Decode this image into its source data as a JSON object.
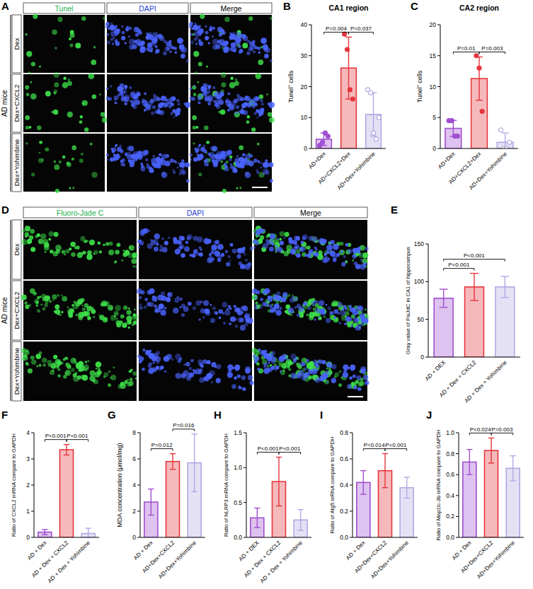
{
  "chart_data": [
    {
      "type": "bar",
      "panel": "B",
      "title": "CA1 region",
      "ylabel": "Tunel⁺ cells",
      "categories": [
        "AD+Dex",
        "AD+CXCL2+Dex",
        "AD+Dex+Yohimbine"
      ],
      "values": [
        3,
        26,
        11
      ],
      "errors": [
        2,
        10,
        7
      ],
      "points": [
        [
          1,
          2,
          5,
          4
        ],
        [
          37,
          32,
          19,
          16
        ],
        [
          19,
          18,
          5,
          3,
          10
        ]
      ],
      "colors": [
        "#a04fd0",
        "#e5363c",
        "#b3a8e3"
      ],
      "ylim": [
        0,
        40
      ],
      "yticks": [
        0,
        10,
        20,
        30,
        40
      ],
      "annotations": [
        {
          "from": 0,
          "to": 1,
          "text": "P=0.004"
        },
        {
          "from": 1,
          "to": 2,
          "text": "P=0.037"
        }
      ]
    },
    {
      "type": "bar",
      "panel": "C",
      "title": "CA2 region",
      "ylabel": "Tunel⁺ cells",
      "categories": [
        "AD+Dex",
        "AD+CXCL2+Dex",
        "AD+Dex+Yohimbine"
      ],
      "values": [
        3.25,
        11.3,
        1
      ],
      "errors": [
        1.3,
        3.5,
        1.5
      ],
      "points": [
        [
          4.5,
          4.5,
          2,
          2
        ],
        [
          15,
          13,
          6
        ],
        [
          3,
          0,
          0,
          1
        ]
      ],
      "colors": [
        "#a04fd0",
        "#e5363c",
        "#b3a8e3"
      ],
      "ylim": [
        0,
        20
      ],
      "yticks": [
        0,
        5,
        10,
        15,
        20
      ],
      "annotations": [
        {
          "from": 0,
          "to": 1,
          "text": "P=0.01"
        },
        {
          "from": 1,
          "to": 2,
          "text": "P=0.003"
        }
      ]
    },
    {
      "type": "bar",
      "panel": "E",
      "ylabel": "Gray value of FluJdC in CA1 of hippocampus",
      "categories": [
        "AD + DEX",
        "AD + Dex + CXCL2",
        "AD + Dex + Yohimbine"
      ],
      "values": [
        78,
        93,
        93
      ],
      "errors": [
        12,
        18,
        14
      ],
      "colors": [
        "#a04fd0",
        "#e5363c",
        "#b3a8e3"
      ],
      "ylim": [
        0,
        150
      ],
      "yticks": [
        0,
        50,
        100,
        150
      ],
      "annotations": [
        {
          "from": 0,
          "to": 1,
          "text": "P<0.001"
        },
        {
          "from": 0,
          "to": 2,
          "text": "P<0.001"
        }
      ]
    },
    {
      "type": "bar",
      "panel": "F",
      "ylabel": "Ratio of CXCL2 mRNA compare to GAPDH",
      "categories": [
        "AD + Dex",
        "AD + Dex + CXCL2",
        "AD + Dex + Yohimbine"
      ],
      "values": [
        0.2,
        3.35,
        0.15
      ],
      "errors": [
        0.1,
        0.2,
        0.2
      ],
      "colors": [
        "#a04fd0",
        "#e5363c",
        "#b3a8e3"
      ],
      "ylim": [
        0,
        4
      ],
      "yticks": [
        0,
        1,
        2,
        3,
        4
      ],
      "annotations": [
        {
          "from": 0,
          "to": 1,
          "text": "P<0.001"
        },
        {
          "from": 1,
          "to": 2,
          "text": "P<0.001"
        }
      ]
    },
    {
      "type": "bar",
      "panel": "G",
      "ylabel": "MDA concentration (μmol/mg)",
      "categories": [
        "AD + Dex",
        "AD+Dex+CXCL2",
        "AD+Dex+Yohimbine"
      ],
      "values": [
        2.7,
        5.8,
        5.7
      ],
      "errors": [
        1,
        0.6,
        2.2
      ],
      "colors": [
        "#a04fd0",
        "#e5363c",
        "#b3a8e3"
      ],
      "ylim": [
        0,
        8
      ],
      "yticks": [
        0,
        2,
        4,
        6,
        8
      ],
      "annotations": [
        {
          "from": 0,
          "to": 1,
          "text": "P=0.012"
        },
        {
          "from": 1,
          "to": 2,
          "text": "P=0.016"
        }
      ]
    },
    {
      "type": "bar",
      "panel": "H",
      "ylabel": "Ratio of NLRP3 mRNA compare to GAPDH",
      "categories": [
        "AD + DEX",
        "AD + Dex + CXCL2",
        "AD + Dex + Yohimbine"
      ],
      "values": [
        0.28,
        0.8,
        0.25
      ],
      "errors": [
        0.14,
        0.35,
        0.15
      ],
      "colors": [
        "#a04fd0",
        "#e5363c",
        "#b3a8e3"
      ],
      "ylim": [
        0,
        1.5
      ],
      "yticks": [
        {
          "value": 0,
          "label": "0.0"
        },
        {
          "value": 0.5,
          "label": "0.5"
        },
        {
          "value": 1,
          "label": "1.0"
        },
        {
          "value": 1.5,
          "label": "1.5"
        }
      ],
      "annotations": [
        {
          "from": 0,
          "to": 1,
          "text": "P<0.001"
        },
        {
          "from": 1,
          "to": 2,
          "text": "P<0.001"
        }
      ]
    },
    {
      "type": "bar",
      "panel": "I",
      "ylabel": "Ratio of Atg5 mRNA compare to GAPDH",
      "categories": [
        "AD + Dex",
        "AD+Dex+CXCL2",
        "AD+Dex+Yohimbine"
      ],
      "values": [
        0.42,
        0.51,
        0.38
      ],
      "errors": [
        0.09,
        0.13,
        0.08
      ],
      "colors": [
        "#a04fd0",
        "#e5363c",
        "#b3a8e3"
      ],
      "ylim": [
        0,
        0.8
      ],
      "yticks": [
        {
          "value": 0,
          "label": "0.0"
        },
        {
          "value": 0.2,
          "label": "0.2"
        },
        {
          "value": 0.4,
          "label": "0.4"
        },
        {
          "value": 0.6,
          "label": "0.6"
        },
        {
          "value": 0.8,
          "label": "0.8"
        }
      ],
      "annotations": [
        {
          "from": 0,
          "to": 1,
          "text": "P=0.014"
        },
        {
          "from": 1,
          "to": 2,
          "text": "P<0.001"
        }
      ]
    },
    {
      "type": "bar",
      "panel": "J",
      "ylabel": "Ratio of Map1lc-3b mRNA compare to GAPDH",
      "categories": [
        "AD + Dex",
        "AD+Dex+CXCL2",
        "AD+Dex+Yohimbine"
      ],
      "values": [
        0.72,
        0.83,
        0.66
      ],
      "errors": [
        0.12,
        0.12,
        0.12
      ],
      "colors": [
        "#a04fd0",
        "#e5363c",
        "#b3a8e3"
      ],
      "ylim": [
        0,
        1
      ],
      "yticks": [
        {
          "value": 0,
          "label": "0.0"
        },
        {
          "value": 0.2,
          "label": "0.2"
        },
        {
          "value": 0.4,
          "label": "0.4"
        },
        {
          "value": 0.6,
          "label": "0.6"
        },
        {
          "value": 0.8,
          "label": "0.8"
        },
        {
          "value": 1,
          "label": "1.0"
        }
      ],
      "annotations": [
        {
          "from": 0,
          "to": 1,
          "text": "P<0.024"
        },
        {
          "from": 1,
          "to": 2,
          "text": "P=0.003"
        }
      ]
    }
  ],
  "image_panels": [
    {
      "panel": "A",
      "group_label": "AD mice",
      "columns": [
        "Tunel",
        "DAPI",
        "Merge"
      ],
      "rows": [
        "Dex",
        "Dex+CXCL2",
        "Dex+Yohimbine"
      ]
    },
    {
      "panel": "D",
      "group_label": "AD mice",
      "columns": [
        "Fluoro-Jade C",
        "DAPI",
        "Merge"
      ],
      "rows": [
        "Dex",
        "Dex+CXCL2",
        "Dex+Yohimbine"
      ]
    }
  ]
}
